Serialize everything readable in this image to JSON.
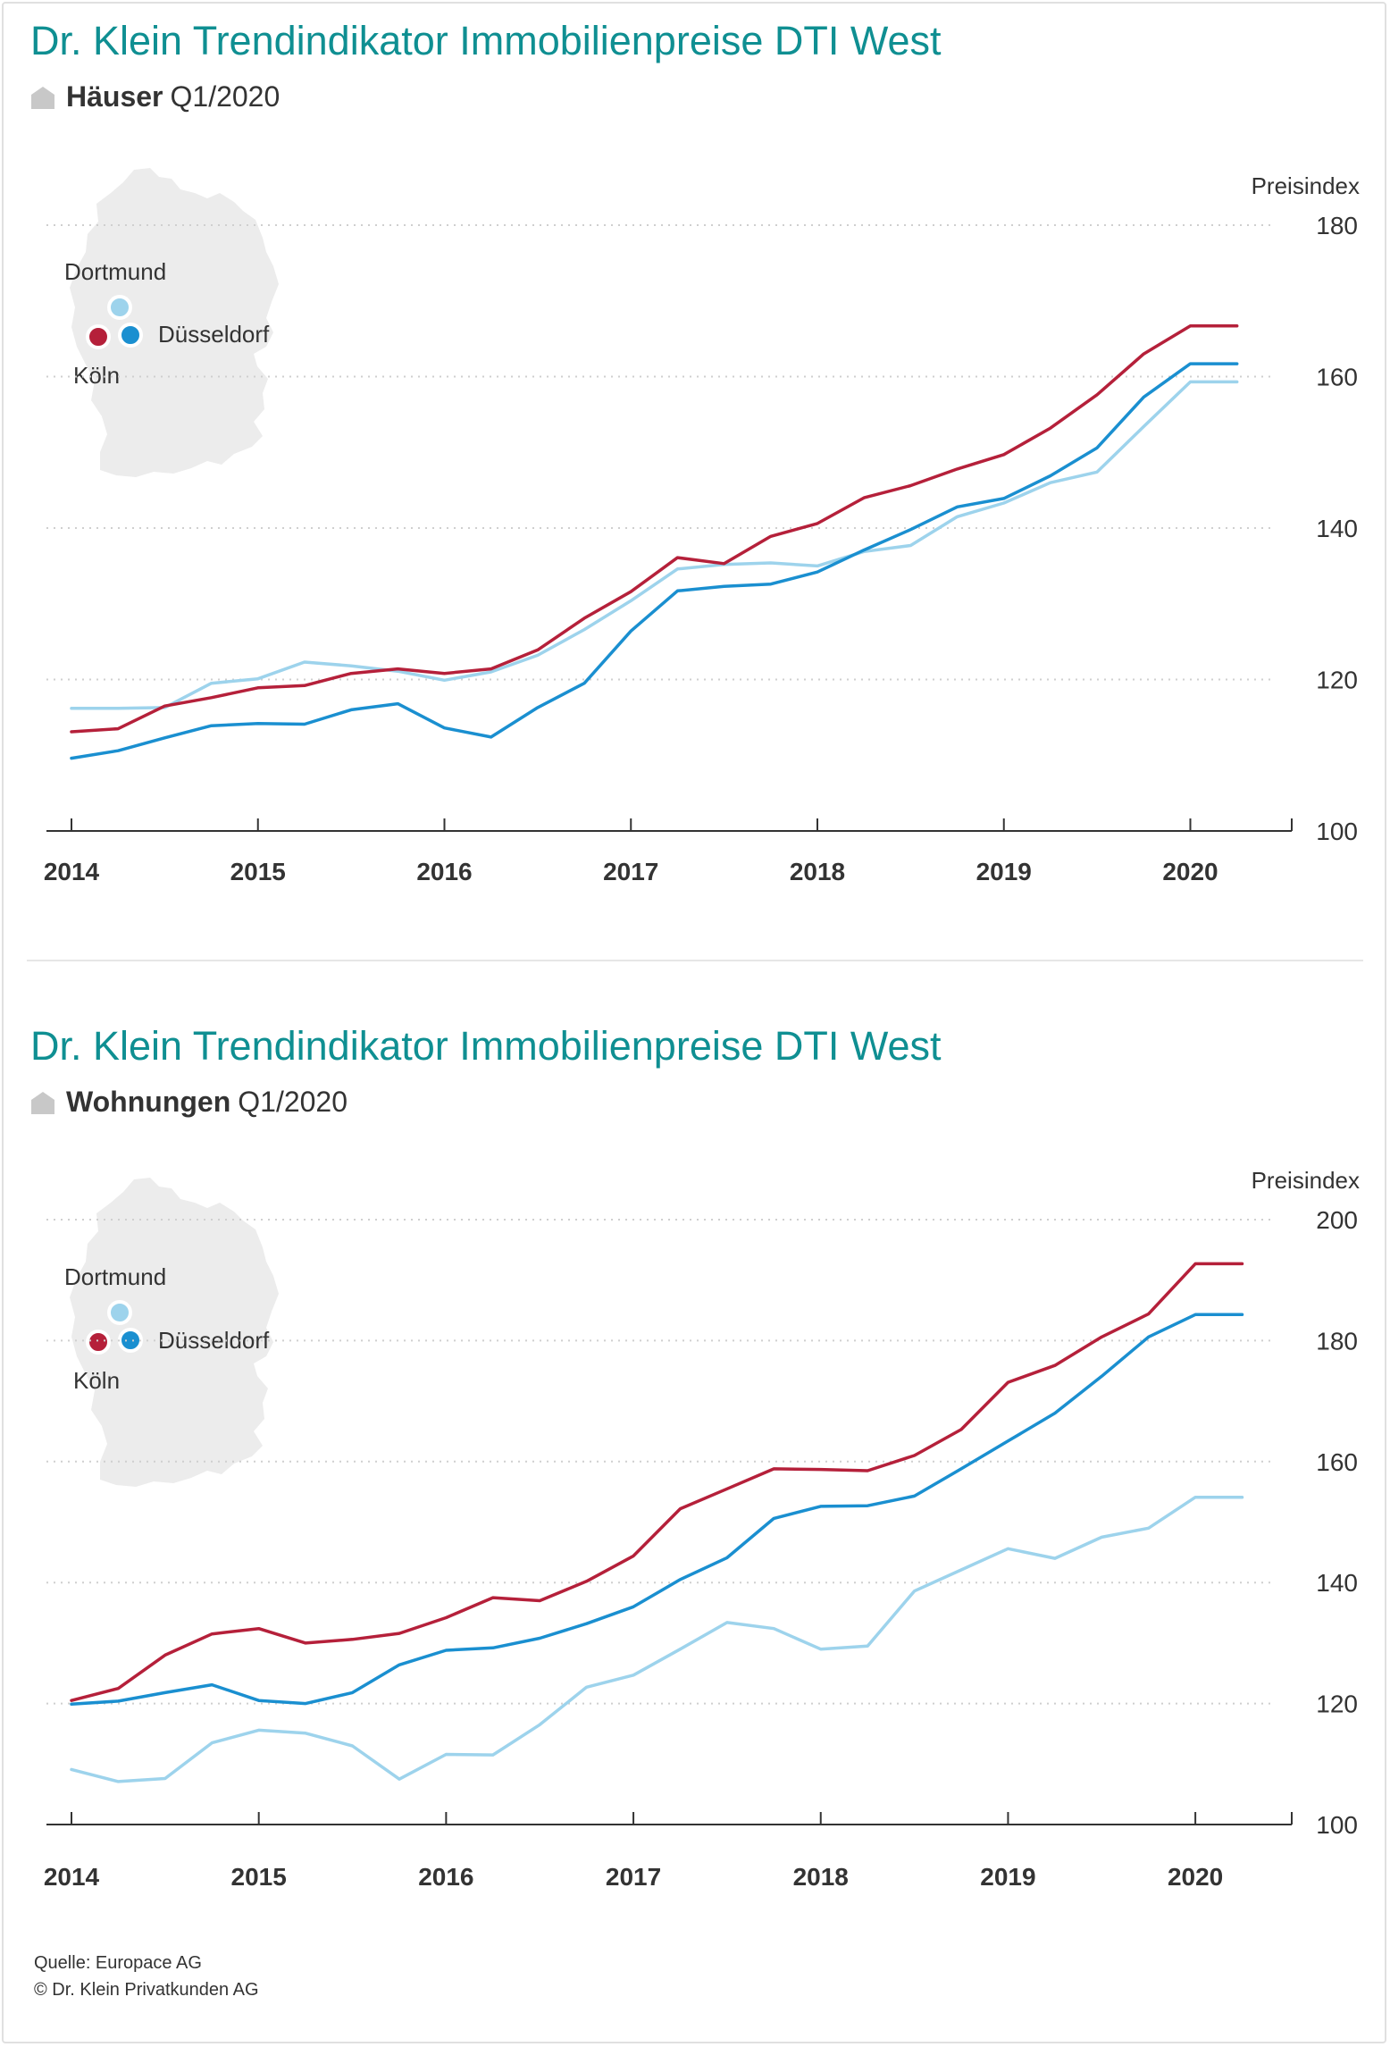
{
  "charts": [
    {
      "title": "Dr. Klein Trendindikator Immobilienpreise DTI West",
      "category": "Häuser",
      "period": "Q1/2020",
      "map_labels": {
        "dortmund": "Dortmund",
        "duesseldorf": "Düsseldorf",
        "koeln": "Köln"
      }
    },
    {
      "title": "Dr. Klein Trendindikator Immobilienpreise DTI West",
      "category": "Wohnungen",
      "period": "Q1/2020",
      "map_labels": {
        "dortmund": "Dortmund",
        "duesseldorf": "Düsseldorf",
        "koeln": "Köln"
      }
    }
  ],
  "icons": {
    "house": "house-icon",
    "map": "germany-map-icon"
  },
  "colors": {
    "title": "#0f8f92",
    "koeln": "#b5203a",
    "duesseldorf": "#1a8fd0",
    "dortmund": "#9dd3ec",
    "map": "#ececec"
  },
  "source": {
    "line1": "Quelle: Europace AG",
    "line2": "© Dr. Klein Privatkunden AG"
  },
  "chart_data": [
    {
      "type": "line",
      "title": "Häuser Q1/2020",
      "ylabel": "Preisindex",
      "ylim": [
        100,
        180
      ],
      "yticks": [
        100,
        120,
        140,
        160,
        180
      ],
      "xlim": [
        2014,
        2020.4
      ],
      "xticks": [
        2014,
        2015,
        2016,
        2017,
        2018,
        2019,
        2020
      ],
      "xticklabels": [
        "2014",
        "2015",
        "2016",
        "2017",
        "2018",
        "2019",
        "2020"
      ],
      "grid": true,
      "x": [
        2014.0,
        2014.25,
        2014.5,
        2014.75,
        2015.0,
        2015.25,
        2015.5,
        2015.75,
        2016.0,
        2016.25,
        2016.5,
        2016.75,
        2017.0,
        2017.25,
        2017.5,
        2017.75,
        2018.0,
        2018.25,
        2018.5,
        2018.75,
        2019.0,
        2019.25,
        2019.5,
        2019.75,
        2020.0,
        2020.25
      ],
      "series": [
        {
          "name": "Köln",
          "color": "#b5203a",
          "values": [
            113.1,
            113.5,
            116.5,
            117.6,
            118.9,
            119.2,
            120.8,
            121.4,
            120.8,
            121.4,
            123.9,
            128.1,
            131.6,
            136.1,
            135.3,
            138.9,
            140.6,
            144.0,
            145.6,
            147.8,
            149.7,
            153.2,
            157.6,
            163.0,
            166.7,
            166.7
          ]
        },
        {
          "name": "Düsseldorf",
          "color": "#1a8fd0",
          "values": [
            109.6,
            110.6,
            112.3,
            113.9,
            114.2,
            114.1,
            116.0,
            116.8,
            113.6,
            112.4,
            116.3,
            119.5,
            126.4,
            131.7,
            132.3,
            132.6,
            134.2,
            137.1,
            139.8,
            142.8,
            143.9,
            146.9,
            150.6,
            157.3,
            161.7,
            161.7
          ]
        },
        {
          "name": "Dortmund",
          "color": "#9dd3ec",
          "values": [
            116.2,
            116.2,
            116.3,
            119.5,
            120.1,
            122.3,
            121.8,
            121.1,
            119.9,
            121.0,
            123.2,
            126.6,
            130.4,
            134.6,
            135.2,
            135.4,
            135.0,
            136.9,
            137.7,
            141.5,
            143.3,
            146.0,
            147.4,
            153.4,
            159.3,
            159.3
          ]
        }
      ]
    },
    {
      "type": "line",
      "title": "Wohnungen Q1/2020",
      "ylabel": "Preisindex",
      "ylim": [
        100,
        200
      ],
      "yticks": [
        100,
        120,
        140,
        160,
        180,
        200
      ],
      "xlim": [
        2014,
        2020.4
      ],
      "xticks": [
        2014,
        2015,
        2016,
        2017,
        2018,
        2019,
        2020
      ],
      "xticklabels": [
        "2014",
        "2015",
        "2016",
        "2017",
        "2018",
        "2019",
        "2020"
      ],
      "grid": true,
      "x": [
        2014.0,
        2014.25,
        2014.5,
        2014.75,
        2015.0,
        2015.25,
        2015.5,
        2015.75,
        2016.0,
        2016.25,
        2016.5,
        2016.75,
        2017.0,
        2017.25,
        2017.5,
        2017.75,
        2018.0,
        2018.25,
        2018.5,
        2018.75,
        2019.0,
        2019.25,
        2019.5,
        2019.75,
        2020.0,
        2020.25
      ],
      "series": [
        {
          "name": "Köln",
          "color": "#b5203a",
          "values": [
            120.5,
            122.5,
            128.0,
            131.5,
            132.4,
            130.0,
            130.6,
            131.6,
            134.2,
            137.5,
            137.0,
            140.2,
            144.4,
            152.2,
            155.5,
            158.8,
            158.7,
            158.5,
            161.0,
            165.3,
            173.1,
            175.9,
            180.6,
            184.4,
            192.7,
            192.7
          ]
        },
        {
          "name": "Düsseldorf",
          "color": "#1a8fd0",
          "values": [
            119.9,
            120.4,
            121.8,
            123.1,
            120.5,
            120.0,
            121.8,
            126.4,
            128.8,
            129.2,
            130.8,
            133.2,
            136.0,
            140.5,
            144.1,
            150.6,
            152.6,
            152.7,
            154.3,
            158.8,
            163.4,
            168.0,
            174.1,
            180.6,
            184.3,
            184.3
          ]
        },
        {
          "name": "Dortmund",
          "color": "#9dd3ec",
          "values": [
            109.1,
            107.1,
            107.6,
            113.5,
            115.6,
            115.1,
            113.0,
            107.5,
            111.6,
            111.5,
            116.5,
            122.7,
            124.7,
            129.0,
            133.4,
            132.4,
            129.0,
            129.5,
            138.6,
            142.1,
            145.6,
            144.0,
            147.5,
            149.0,
            154.1,
            154.1
          ]
        }
      ]
    }
  ]
}
